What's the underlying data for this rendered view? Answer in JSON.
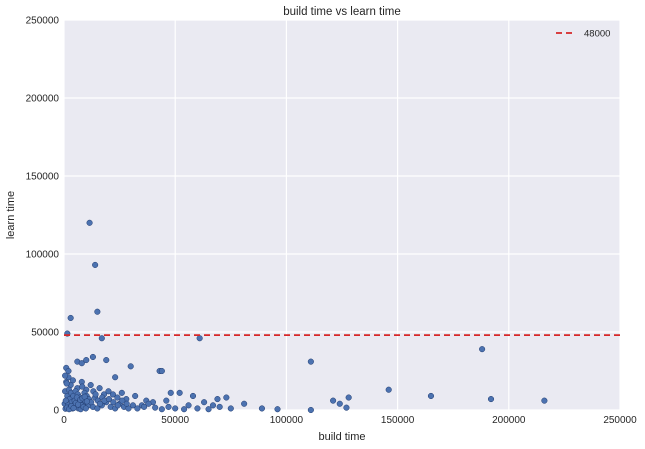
{
  "chart_data": {
    "type": "scatter",
    "title": "build time vs learn time",
    "xlabel": "build time",
    "ylabel": "learn time",
    "xlim": [
      0,
      250000
    ],
    "ylim": [
      0,
      250000
    ],
    "xticks": [
      0,
      50000,
      100000,
      150000,
      200000,
      250000
    ],
    "yticks": [
      0,
      50000,
      100000,
      150000,
      200000,
      250000
    ],
    "xtick_labels": [
      "0",
      "50000",
      "100000",
      "150000",
      "200000",
      "250000"
    ],
    "ytick_labels": [
      "0",
      "50000",
      "100000",
      "150000",
      "200000",
      "250000"
    ],
    "grid": true,
    "background": "#EAEAF2",
    "point_color": "#4C72B0",
    "reference_line": {
      "y": 48000,
      "label": "48000",
      "color": "#D62728",
      "style": "dashed"
    },
    "legend_position": "top-right",
    "points": [
      [
        11500,
        120000
      ],
      [
        14000,
        93000
      ],
      [
        3000,
        59000
      ],
      [
        15000,
        63000
      ],
      [
        1500,
        49000
      ],
      [
        61000,
        46000
      ],
      [
        17000,
        46000
      ],
      [
        188000,
        39000
      ],
      [
        111000,
        31000
      ],
      [
        30000,
        28000
      ],
      [
        1000,
        27000
      ],
      [
        2000,
        25000
      ],
      [
        43000,
        25000
      ],
      [
        44000,
        25000
      ],
      [
        6000,
        31000
      ],
      [
        8000,
        30000
      ],
      [
        10000,
        32000
      ],
      [
        13000,
        34000
      ],
      [
        19000,
        32000
      ],
      [
        23000,
        21000
      ],
      [
        146000,
        13000
      ],
      [
        165000,
        9000
      ],
      [
        192000,
        7000
      ],
      [
        216000,
        6000
      ],
      [
        128000,
        8000
      ],
      [
        121000,
        6000
      ],
      [
        124000,
        4000
      ],
      [
        127000,
        1500
      ],
      [
        111000,
        0
      ],
      [
        96000,
        500
      ],
      [
        89000,
        1000
      ],
      [
        81000,
        4000
      ],
      [
        73000,
        8000
      ],
      [
        69000,
        7000
      ],
      [
        67000,
        3000
      ],
      [
        63000,
        5000
      ],
      [
        58000,
        9000
      ],
      [
        52000,
        11000
      ],
      [
        48000,
        11000
      ],
      [
        46000,
        6000
      ],
      [
        40000,
        5000
      ],
      [
        37000,
        6000
      ],
      [
        35000,
        3000
      ],
      [
        32000,
        9000
      ],
      [
        28000,
        7000
      ],
      [
        26000,
        11000
      ],
      [
        24000,
        8000
      ],
      [
        22000,
        10000
      ],
      [
        20000,
        12000
      ],
      [
        18000,
        10000
      ],
      [
        16000,
        14000
      ],
      [
        14000,
        8000
      ],
      [
        12000,
        16000
      ],
      [
        10000,
        13000
      ],
      [
        8000,
        18000
      ],
      [
        6000,
        14000
      ],
      [
        4000,
        19000
      ],
      [
        3000,
        16000
      ],
      [
        2000,
        21000
      ],
      [
        1000,
        18000
      ],
      [
        500,
        12000
      ],
      [
        1500,
        9000
      ],
      [
        2500,
        7000
      ],
      [
        3500,
        5000
      ],
      [
        4500,
        3000
      ],
      [
        5500,
        2000
      ],
      [
        6500,
        1000
      ],
      [
        7500,
        500
      ],
      [
        8500,
        4000
      ],
      [
        9500,
        6000
      ],
      [
        11000,
        3000
      ],
      [
        13000,
        2000
      ],
      [
        15000,
        1000
      ],
      [
        17000,
        3000
      ],
      [
        19000,
        5000
      ],
      [
        21000,
        2000
      ],
      [
        23000,
        1000
      ],
      [
        25000,
        4000
      ],
      [
        27000,
        2000
      ],
      [
        29000,
        1000
      ],
      [
        31000,
        3000
      ],
      [
        33000,
        1000
      ],
      [
        36000,
        2000
      ],
      [
        38000,
        4000
      ],
      [
        41000,
        1500
      ],
      [
        44000,
        500
      ],
      [
        47000,
        2000
      ],
      [
        50000,
        1000
      ],
      [
        54000,
        500
      ],
      [
        56000,
        3000
      ],
      [
        60000,
        1000
      ],
      [
        65000,
        500
      ],
      [
        70000,
        2000
      ],
      [
        75000,
        1000
      ],
      [
        500,
        22000
      ],
      [
        1200,
        17000
      ],
      [
        2200,
        13000
      ],
      [
        3200,
        11000
      ],
      [
        4200,
        9000
      ],
      [
        5200,
        12000
      ],
      [
        6200,
        10000
      ],
      [
        7200,
        8000
      ],
      [
        8200,
        15000
      ],
      [
        9200,
        11000
      ],
      [
        10200,
        9000
      ],
      [
        11200,
        7000
      ],
      [
        12200,
        5000
      ],
      [
        13200,
        12000
      ],
      [
        14200,
        10000
      ],
      [
        15200,
        6000
      ],
      [
        16200,
        4000
      ],
      [
        17200,
        8000
      ],
      [
        18200,
        6000
      ],
      [
        20200,
        7000
      ],
      [
        22200,
        5000
      ],
      [
        24200,
        3000
      ],
      [
        26200,
        6000
      ],
      [
        28200,
        4000
      ],
      [
        300,
        4000
      ],
      [
        800,
        6000
      ],
      [
        1800,
        3000
      ],
      [
        2800,
        2000
      ],
      [
        3800,
        1000
      ],
      [
        4800,
        6000
      ],
      [
        5800,
        8000
      ],
      [
        6800,
        5000
      ],
      [
        7800,
        3000
      ],
      [
        8800,
        2000
      ],
      [
        9800,
        1000
      ],
      [
        700,
        800
      ],
      [
        1300,
        1500
      ],
      [
        2300,
        500
      ],
      [
        3300,
        2500
      ],
      [
        4300,
        1200
      ],
      [
        5300,
        4500
      ],
      [
        6300,
        3500
      ],
      [
        7300,
        6500
      ],
      [
        8300,
        7500
      ],
      [
        9300,
        8500
      ],
      [
        10300,
        5500
      ]
    ]
  }
}
